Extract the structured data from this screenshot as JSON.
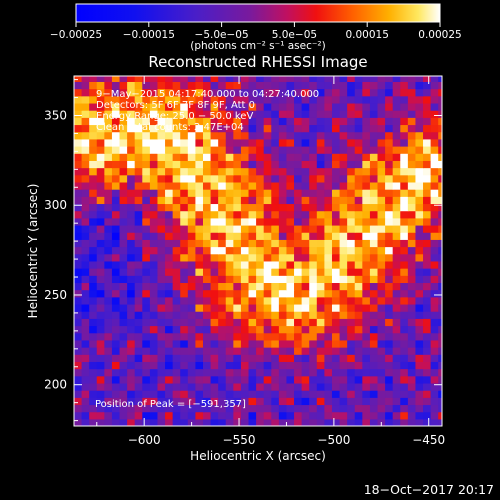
{
  "chart_data": {
    "type": "heatmap",
    "title": "Reconstructed RHESSI Image",
    "xlabel": "Heliocentric X (arcsec)",
    "ylabel": "Heliocentric Y (arcsec)",
    "xlim": [
      -637,
      -443
    ],
    "ylim": [
      177,
      372
    ],
    "x_ticks": [
      -600,
      -550,
      -500,
      -450
    ],
    "x_tick_labels": [
      "−600",
      "−550",
      "−500",
      "−450"
    ],
    "y_ticks": [
      200,
      250,
      300,
      350
    ],
    "y_tick_labels": [
      "200",
      "250",
      "300",
      "350"
    ],
    "colorbar": {
      "range": [
        -0.00025,
        0.00025
      ],
      "ticks": [
        -0.00025,
        -0.00015,
        -5e-05,
        5e-05,
        0.00015,
        0.00025
      ],
      "tick_labels": [
        "−0.00025",
        "−0.00015",
        "−5.0e−05",
        "5.0e−05",
        "0.00015",
        "0.00025"
      ],
      "label": "(photons cm⁻² s⁻¹ asec⁻²)"
    },
    "annotations": [
      "9−May−2015 04:17:40.000 to 04:27:40.000",
      "Detectors: 5F 6F 7F 8F 9F, Att 0",
      "Energy Range: 25.0 − 50.0 keV",
      "Clean   Total counts: 2.47E+04"
    ],
    "peak_label": "Position of Peak = [−591,357]",
    "peak": [
      -591,
      357
    ],
    "bright_ridge": [
      [
        -630,
        340
      ],
      [
        -580,
        330
      ],
      [
        -560,
        300
      ],
      [
        -540,
        260
      ],
      [
        -520,
        250
      ],
      [
        -500,
        265
      ],
      [
        -470,
        305
      ],
      [
        -445,
        320
      ]
    ]
  },
  "footer": {
    "timestamp": "18−Oct−2017 20:17"
  }
}
